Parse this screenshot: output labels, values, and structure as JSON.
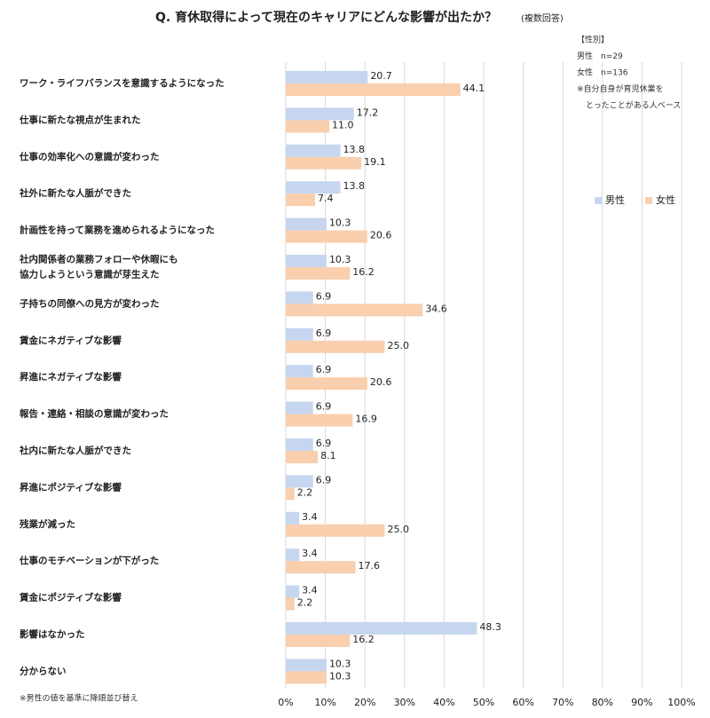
{
  "chart_data": {
    "type": "bar",
    "orientation": "horizontal",
    "title": "Q. 育休取得によって現在のキャリアにどんな影響が出たか？",
    "subtitle": "(複数回答)",
    "categories": [
      "ワーク・ライフバランスを意識するようになった",
      "仕事に新たな視点が生まれた",
      "仕事の効率化への意識が変わった",
      "社外に新たな人脈ができた",
      "計画性を持って業務を進められるようになった",
      "社内関係者の業務フォローや休暇にも\n協力しようという意識が芽生えた",
      "子持ちの同僚への見方が変わった",
      "賃金にネガティブな影響",
      "昇進にネガティブな影響",
      "報告・連絡・相談の意識が変わった",
      "社内に新たな人脈ができた",
      "昇進にポジティブな影響",
      "残業が減った",
      "仕事のモチベーションが下がった",
      "賃金にポジティブな影響",
      "影響はなかった",
      "分からない"
    ],
    "series": [
      {
        "name": "男性",
        "color": "#c6d6ef",
        "values": [
          20.7,
          17.2,
          13.8,
          13.8,
          10.3,
          10.3,
          6.9,
          6.9,
          6.9,
          6.9,
          6.9,
          6.9,
          3.4,
          3.4,
          3.4,
          48.3,
          10.3
        ],
        "value_labels": [
          "20.7",
          "17.2",
          "13.8",
          "13.8",
          "10.3",
          "10.3",
          "6.9",
          "6.9",
          "6.9",
          "6.9",
          "6.9",
          "6.9",
          "3.4",
          "3.4",
          "3.4",
          "48.3",
          "10.3"
        ]
      },
      {
        "name": "女性",
        "color": "#f9cfae",
        "values": [
          44.1,
          11.0,
          19.1,
          7.4,
          20.6,
          16.2,
          34.6,
          25.0,
          20.6,
          16.9,
          8.1,
          2.2,
          25.0,
          17.6,
          2.2,
          16.2,
          10.3
        ],
        "value_labels": [
          "44.1",
          "11.0",
          "19.1",
          "7.4",
          "20.6",
          "16.2",
          "34.6",
          "25.0",
          "20.6",
          "16.9",
          "8.1",
          "2.2",
          "25.0",
          "17.6",
          "2.2",
          "16.2",
          "10.3"
        ]
      }
    ],
    "xlim": [
      0,
      100
    ],
    "xticks": [
      {
        "value": 0,
        "label": "0%"
      },
      {
        "value": 10,
        "label": "10%"
      },
      {
        "value": 20,
        "label": "20%"
      },
      {
        "value": 30,
        "label": "30%"
      },
      {
        "value": 40,
        "label": "40%"
      },
      {
        "value": 50,
        "label": "50%"
      },
      {
        "value": 60,
        "label": "60%"
      },
      {
        "value": 70,
        "label": "70%"
      },
      {
        "value": 80,
        "label": "80%"
      },
      {
        "value": 90,
        "label": "90%"
      },
      {
        "value": 100,
        "label": "100%"
      }
    ],
    "grid": true,
    "notes": [
      "【性別】",
      "男性　n=29",
      "女性　n=136",
      "※自分自身が育児休業を",
      "とったことがある人ベース"
    ],
    "footnote": "※男性の値を基準に降順並び替え"
  }
}
